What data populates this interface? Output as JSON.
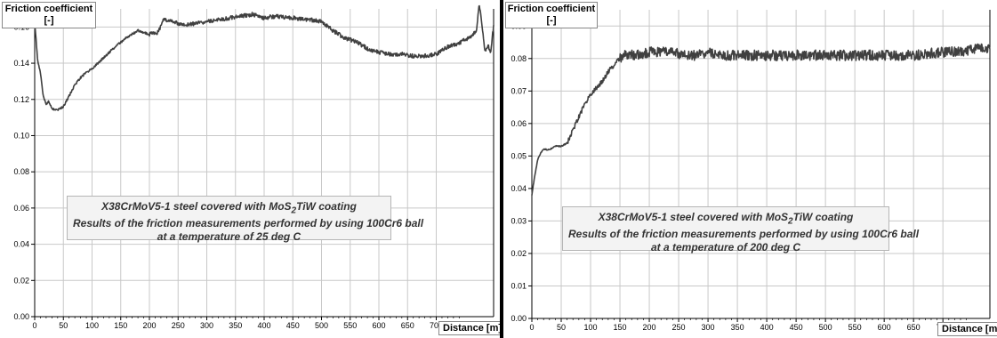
{
  "chart_data": [
    {
      "type": "line",
      "ylabel": "Friction coefficient\n[-]",
      "ylabel_line1": "Friction coefficient",
      "ylabel_line2": "[-]",
      "xlabel": "Distance [m]",
      "xlim": [
        0,
        800
      ],
      "ylim": [
        0,
        0.17
      ],
      "x_ticks": [
        0,
        50,
        100,
        150,
        200,
        250,
        300,
        350,
        400,
        450,
        500,
        550,
        600,
        650,
        700
      ],
      "y_ticks": [
        "0.00",
        "0.02",
        "0.04",
        "0.06",
        "0.08",
        "0.10",
        "0.12",
        "0.14",
        "0.16"
      ],
      "grid": true,
      "annotation": {
        "line1_pre": "X38CrMoV5-1 steel covered with MoS",
        "line1_sub": "2",
        "line1_post": "TiW coating",
        "line2": "Results of the friction measurements performed  by using  100Cr6 ball",
        "line3": "at a temperature of 25 deg C"
      },
      "series": [
        {
          "color": "#404040",
          "x": [
            0,
            5,
            10,
            15,
            20,
            25,
            30,
            40,
            50,
            60,
            70,
            80,
            90,
            100,
            120,
            140,
            160,
            180,
            200,
            215,
            225,
            240,
            260,
            300,
            340,
            380,
            400,
            420,
            450,
            480,
            500,
            520,
            540,
            560,
            580,
            600,
            620,
            640,
            660,
            680,
            700,
            720,
            740,
            750,
            760,
            770,
            775,
            780,
            785,
            790,
            795,
            800
          ],
          "y": [
            0.163,
            0.142,
            0.135,
            0.122,
            0.117,
            0.119,
            0.115,
            0.114,
            0.116,
            0.122,
            0.128,
            0.132,
            0.135,
            0.137,
            0.143,
            0.149,
            0.154,
            0.158,
            0.156,
            0.157,
            0.164,
            0.163,
            0.161,
            0.163,
            0.165,
            0.167,
            0.165,
            0.166,
            0.165,
            0.164,
            0.163,
            0.158,
            0.154,
            0.152,
            0.148,
            0.146,
            0.145,
            0.145,
            0.144,
            0.144,
            0.145,
            0.149,
            0.151,
            0.153,
            0.154,
            0.158,
            0.173,
            0.16,
            0.146,
            0.15,
            0.146,
            0.161
          ]
        }
      ]
    },
    {
      "type": "line",
      "ylabel": "Friction coefficient\n[-]",
      "ylabel_line1": "Friction coefficient",
      "ylabel_line2": "[-]",
      "xlabel": "Distance [m]",
      "xlim": [
        0,
        780
      ],
      "ylim": [
        0,
        0.095
      ],
      "x_ticks": [
        0,
        50,
        100,
        150,
        200,
        250,
        300,
        350,
        400,
        450,
        500,
        550,
        600,
        650,
        700
      ],
      "y_ticks": [
        "0.00",
        "0.01",
        "0.02",
        "0.03",
        "0.04",
        "0.05",
        "0.06",
        "0.07",
        "0.08",
        "0.09"
      ],
      "grid": true,
      "annotation": {
        "line1_pre": "X38CrMoV5-1 steel covered with MoS",
        "line1_sub": "2",
        "line1_post": "TiW coating",
        "line2": "Results of the friction measurements performed  by using  100Cr6 ball",
        "line3": "at a temperature of 200 deg C"
      },
      "series": [
        {
          "color": "#404040",
          "x": [
            0,
            5,
            10,
            15,
            20,
            30,
            40,
            50,
            60,
            70,
            80,
            90,
            100,
            110,
            120,
            130,
            140,
            150,
            160,
            170,
            180,
            200,
            220,
            240,
            260,
            280,
            300,
            320,
            350,
            380,
            400,
            450,
            500,
            550,
            600,
            650,
            700,
            730,
            760,
            780
          ],
          "y": [
            0.038,
            0.044,
            0.049,
            0.051,
            0.052,
            0.052,
            0.053,
            0.053,
            0.054,
            0.058,
            0.062,
            0.066,
            0.069,
            0.071,
            0.073,
            0.076,
            0.078,
            0.08,
            0.081,
            0.081,
            0.081,
            0.082,
            0.082,
            0.082,
            0.081,
            0.081,
            0.082,
            0.081,
            0.081,
            0.081,
            0.081,
            0.081,
            0.081,
            0.081,
            0.081,
            0.081,
            0.082,
            0.082,
            0.083,
            0.083
          ]
        }
      ]
    }
  ]
}
